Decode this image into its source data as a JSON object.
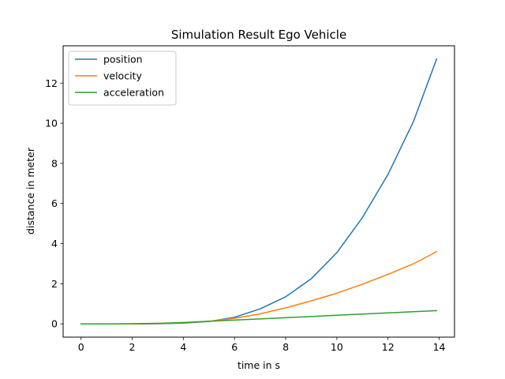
{
  "chart_data": {
    "type": "line",
    "title": "Simulation Result Ego Vehicle",
    "xlabel": "time in s",
    "ylabel": "distance in meter",
    "xlim": [
      -0.7,
      14.6
    ],
    "ylim": [
      -0.66,
      13.86
    ],
    "x_ticks": [
      0,
      2,
      4,
      6,
      8,
      10,
      12,
      14
    ],
    "y_ticks": [
      0,
      2,
      4,
      6,
      8,
      10,
      12
    ],
    "grid": false,
    "legend_position": "upper-left",
    "x": [
      0,
      1,
      2,
      3,
      4,
      5,
      6,
      7,
      8,
      9,
      10,
      11,
      12,
      13,
      13.9
    ],
    "series": [
      {
        "name": "position",
        "color": "#1f77b4",
        "values": [
          0,
          0,
          0,
          0.01,
          0.04,
          0.12,
          0.33,
          0.75,
          1.35,
          2.25,
          3.55,
          5.3,
          7.45,
          10.1,
          13.2
        ]
      },
      {
        "name": "velocity",
        "color": "#ff7f0e",
        "values": [
          0,
          0,
          0,
          0.02,
          0.06,
          0.13,
          0.28,
          0.5,
          0.8,
          1.15,
          1.53,
          1.98,
          2.47,
          3.0,
          3.6
        ]
      },
      {
        "name": "acceleration",
        "color": "#2ca02c",
        "values": [
          0,
          0,
          0.01,
          0.03,
          0.07,
          0.13,
          0.19,
          0.25,
          0.31,
          0.37,
          0.43,
          0.49,
          0.55,
          0.61,
          0.66
        ]
      }
    ]
  }
}
